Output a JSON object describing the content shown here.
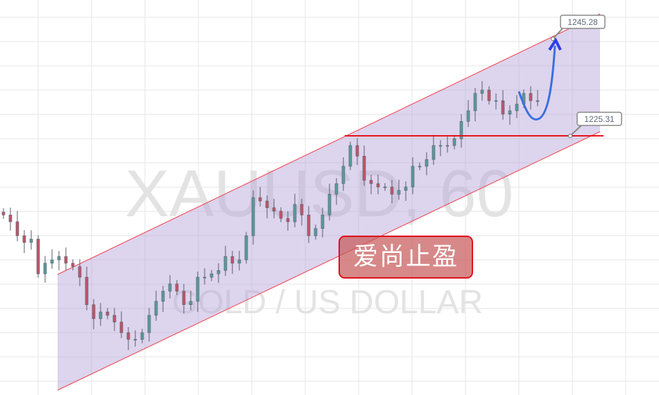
{
  "chart_data": {
    "type": "candlestick",
    "symbol_watermark": "XAUUSD, 60",
    "description_watermark": "GOLD / US DOLLAR",
    "closes": [
      1208.9,
      1207.5,
      1204.6,
      1203.2,
      1203.9,
      1196.7,
      1198.9,
      1199.6,
      1200.3,
      1198.9,
      1198.2,
      1196.0,
      1190.3,
      1187.4,
      1188.8,
      1188.1,
      1186.7,
      1184.5,
      1183.1,
      1183.1,
      1184.5,
      1188.1,
      1191.0,
      1193.1,
      1194.6,
      1193.1,
      1190.3,
      1191.0,
      1196.0,
      1196.0,
      1196.7,
      1197.4,
      1200.3,
      1198.9,
      1199.6,
      1204.6,
      1212.5,
      1211.8,
      1210.4,
      1209.7,
      1208.2,
      1207.5,
      1211.1,
      1208.9,
      1204.6,
      1206.1,
      1208.9,
      1213.2,
      1215.4,
      1219.0,
      1223.3,
      1221.1,
      1216.1,
      1215.4,
      1214.7,
      1214.7,
      1213.2,
      1214.0,
      1214.7,
      1219.0,
      1219.0,
      1220.4,
      1223.3,
      1223.3,
      1223.3,
      1224.7,
      1228.3,
      1230.5,
      1234.1,
      1234.8,
      1232.6,
      1232.6,
      1229.8,
      1230.5,
      1231.9,
      1234.1,
      1232.6,
      1232.6
    ],
    "annotations": {
      "target_price_label": "1245.28",
      "support_price_label": "1225.31",
      "target_price": 1245.28,
      "support_price": 1225.31
    },
    "colors": {
      "up": "#5b9a9c",
      "down": "#c0566a",
      "channel_fill": "#d9d0ea",
      "channel_line": "#f03c4a",
      "support_line": "#e8101a",
      "arrow": "#3a6fe0"
    },
    "grid": true
  },
  "stamp": {
    "text": "爱尚止盈"
  }
}
